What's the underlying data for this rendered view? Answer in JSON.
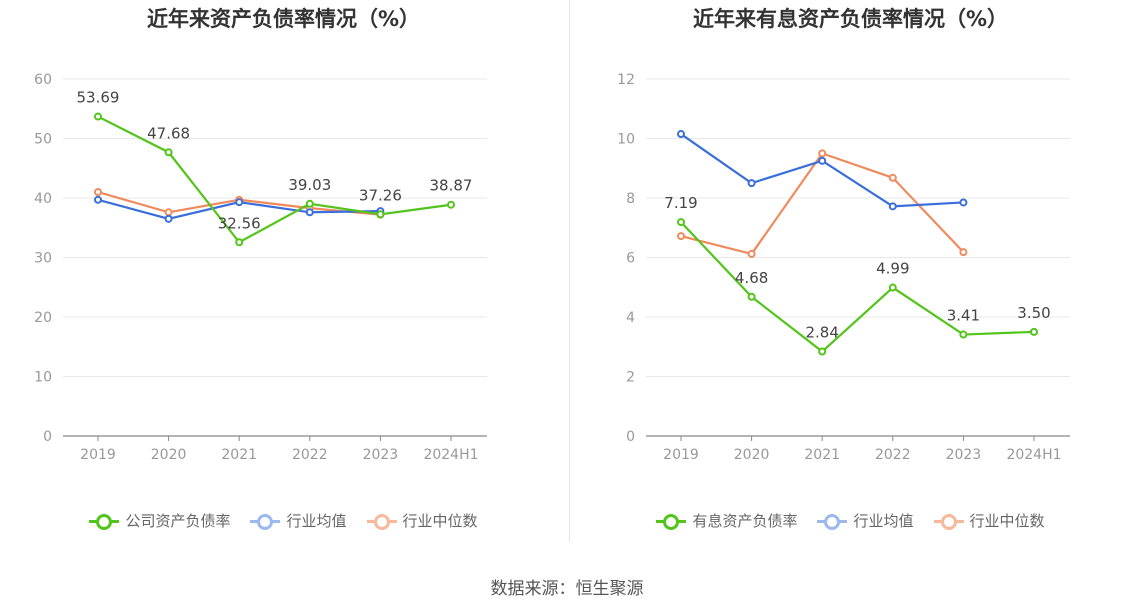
{
  "source_label": "数据来源：恒生聚源",
  "colors": {
    "company": "#52c41a",
    "avg": "#3a6fdb",
    "median": "#f08a5d",
    "grid": "#e8e8e8",
    "axis": "#888888"
  },
  "chart_data": [
    {
      "type": "line",
      "title": "近年来资产负债率情况（%）",
      "categories": [
        "2019",
        "2020",
        "2021",
        "2022",
        "2023",
        "2024H1"
      ],
      "ylim": [
        0,
        60
      ],
      "yticks": [
        0,
        10,
        20,
        30,
        40,
        50,
        60
      ],
      "grid": true,
      "legend_position": "bottom",
      "series": [
        {
          "name": "公司资产负债率",
          "values": [
            53.69,
            47.68,
            32.56,
            39.03,
            37.26,
            38.87
          ],
          "labels": [
            "53.69",
            "47.68",
            "32.56",
            "39.03",
            "37.26",
            "38.87"
          ]
        },
        {
          "name": "行业均值",
          "values": [
            39.7,
            36.5,
            39.3,
            37.6,
            37.8,
            null
          ]
        },
        {
          "name": "行业中位数",
          "values": [
            41.0,
            37.6,
            39.7,
            38.3,
            37.2,
            null
          ]
        }
      ]
    },
    {
      "type": "line",
      "title": "近年来有息资产负债率情况（%）",
      "categories": [
        "2019",
        "2020",
        "2021",
        "2022",
        "2023",
        "2024H1"
      ],
      "ylim": [
        0,
        12
      ],
      "yticks": [
        0,
        2,
        4,
        6,
        8,
        10,
        12
      ],
      "grid": true,
      "legend_position": "bottom",
      "series": [
        {
          "name": "有息资产负债率",
          "values": [
            7.19,
            4.68,
            2.84,
            4.99,
            3.41,
            3.5
          ],
          "labels": [
            "7.19",
            "4.68",
            "2.84",
            "4.99",
            "3.41",
            "3.50"
          ]
        },
        {
          "name": "行业均值",
          "values": [
            10.15,
            8.5,
            9.25,
            7.72,
            7.85,
            null
          ]
        },
        {
          "name": "行业中位数",
          "values": [
            6.72,
            6.12,
            9.5,
            8.68,
            6.18,
            null
          ]
        }
      ]
    }
  ]
}
